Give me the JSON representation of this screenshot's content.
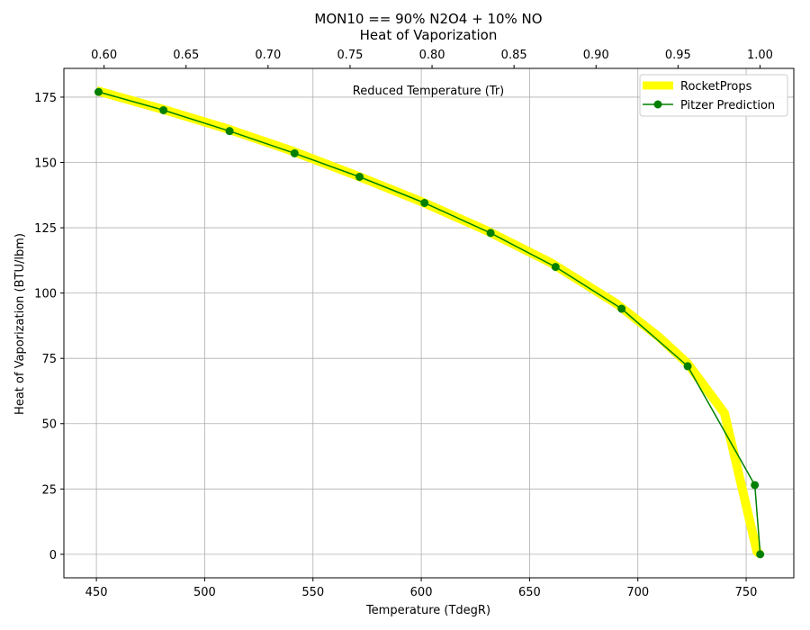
{
  "chart_data": {
    "type": "line",
    "title": "MON10 == 90% N2O4 + 10% NO",
    "subtitle": "Heat of Vaporization",
    "xlabel": "Temperature (TdegR)",
    "ylabel": "Heat of Vaporization (BTU/lbm)",
    "x2label": "Reduced Temperature (Tr)",
    "xlim": [
      435,
      772
    ],
    "ylim": [
      -9,
      186
    ],
    "x2lim": [
      0.5755,
      1.0206
    ],
    "x_ticks": [
      450,
      500,
      550,
      600,
      650,
      700,
      750
    ],
    "y_ticks": [
      0,
      25,
      50,
      75,
      100,
      125,
      150,
      175
    ],
    "x2_ticks": [
      0.6,
      0.65,
      0.7,
      0.75,
      0.8,
      0.85,
      0.9,
      0.95,
      1.0
    ],
    "x2_tick_labels": [
      "0.60",
      "0.65",
      "0.70",
      "0.75",
      "0.80",
      "0.85",
      "0.90",
      "0.95",
      "1.00"
    ],
    "grid": true,
    "legend_position": "top-right",
    "series": [
      {
        "name": "RocketProps",
        "color": "#ffff00",
        "style": "thick-line",
        "x": [
          450,
          480,
          510,
          540,
          570,
          600,
          630,
          660,
          690,
          710,
          723,
          740,
          755,
          756.5
        ],
        "y": [
          177.5,
          170.5,
          163,
          154.5,
          145,
          135,
          124,
          111.5,
          96,
          83,
          73,
          54,
          1,
          0
        ]
      },
      {
        "name": "Pitzer Prediction",
        "color": "#008000",
        "style": "line-marker",
        "x": [
          451,
          481,
          511.5,
          541.5,
          571.5,
          601.5,
          632,
          662,
          692.5,
          723,
          754,
          756.5
        ],
        "y": [
          177,
          170,
          162,
          153.5,
          144.5,
          134.5,
          123,
          110,
          94,
          72,
          26.5,
          0
        ]
      }
    ]
  }
}
